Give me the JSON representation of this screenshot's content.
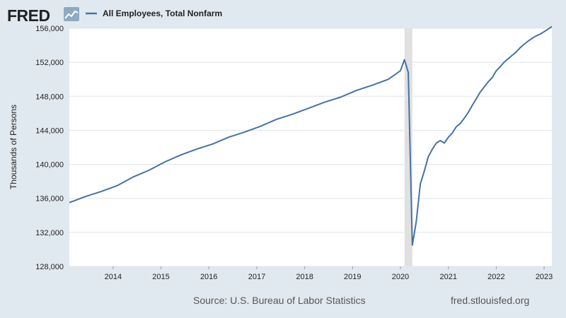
{
  "header": {
    "logo_text": "FRED",
    "logo_icon": "line-chart-icon",
    "legend_label": "All Employees, Total Nonfarm"
  },
  "colors": {
    "background": "#e1e9f0",
    "plot_background": "#ffffff",
    "series": "#4572a7",
    "grid": "#dfe5ea",
    "recession": "#e0e0e0"
  },
  "footer": {
    "source": "Source: U.S. Bureau of Labor Statistics",
    "site": "fred.stlouisfed.org"
  },
  "chart_data": {
    "type": "line",
    "title": "",
    "xlabel": "",
    "ylabel": "Thousands of Persons",
    "xlim": [
      "2013-02-01",
      "2023-03-01"
    ],
    "ylim": [
      128000,
      156000
    ],
    "yticks": [
      128000,
      132000,
      136000,
      140000,
      144000,
      148000,
      152000,
      156000
    ],
    "ytick_labels": [
      "128,000",
      "132,000",
      "136,000",
      "140,000",
      "144,000",
      "148,000",
      "152,000",
      "156,000"
    ],
    "xticks": [
      "2014-01-01",
      "2015-01-01",
      "2016-01-01",
      "2017-01-01",
      "2018-01-01",
      "2019-01-01",
      "2020-01-01",
      "2021-01-01",
      "2022-01-01",
      "2023-01-01"
    ],
    "xtick_labels": [
      "2014",
      "2015",
      "2016",
      "2017",
      "2018",
      "2019",
      "2020",
      "2021",
      "2022",
      "2023"
    ],
    "grid": true,
    "legend": "top-left",
    "recession_shading": [
      {
        "start": "2020-02-01",
        "end": "2020-04-01"
      }
    ],
    "series": [
      {
        "name": "All Employees, Total Nonfarm",
        "x": [
          "2013-02-01",
          "2013-06-01",
          "2013-10-01",
          "2014-02-01",
          "2014-06-01",
          "2014-10-01",
          "2015-02-01",
          "2015-06-01",
          "2015-10-01",
          "2016-02-01",
          "2016-06-01",
          "2016-10-01",
          "2017-02-01",
          "2017-06-01",
          "2017-10-01",
          "2018-02-01",
          "2018-06-01",
          "2018-10-01",
          "2019-02-01",
          "2019-06-01",
          "2019-10-01",
          "2020-01-01",
          "2020-02-01",
          "2020-03-01",
          "2020-04-01",
          "2020-05-01",
          "2020-06-01",
          "2020-07-01",
          "2020-08-01",
          "2020-09-01",
          "2020-10-01",
          "2020-11-01",
          "2020-12-01",
          "2021-01-01",
          "2021-02-01",
          "2021-03-01",
          "2021-04-01",
          "2021-05-01",
          "2021-06-01",
          "2021-07-01",
          "2021-08-01",
          "2021-09-01",
          "2021-10-01",
          "2021-11-01",
          "2021-12-01",
          "2022-01-01",
          "2022-02-01",
          "2022-03-01",
          "2022-04-01",
          "2022-05-01",
          "2022-06-01",
          "2022-07-01",
          "2022-08-01",
          "2022-09-01",
          "2022-10-01",
          "2022-11-01",
          "2022-12-01",
          "2023-01-01",
          "2023-02-01",
          "2023-03-01"
        ],
        "values": [
          135500,
          136200,
          136800,
          137500,
          138500,
          139300,
          140300,
          141100,
          141800,
          142400,
          143200,
          143800,
          144500,
          145300,
          145900,
          146600,
          147300,
          147900,
          148700,
          149300,
          150000,
          151000,
          152300,
          150800,
          130500,
          133300,
          137700,
          139200,
          140900,
          141800,
          142500,
          142800,
          142500,
          143200,
          143700,
          144400,
          144800,
          145400,
          146100,
          146900,
          147700,
          148500,
          149100,
          149700,
          150200,
          151000,
          151500,
          152000,
          152400,
          152800,
          153200,
          153700,
          154100,
          154500,
          154800,
          155100,
          155300,
          155600,
          155900,
          156200
        ]
      }
    ]
  }
}
